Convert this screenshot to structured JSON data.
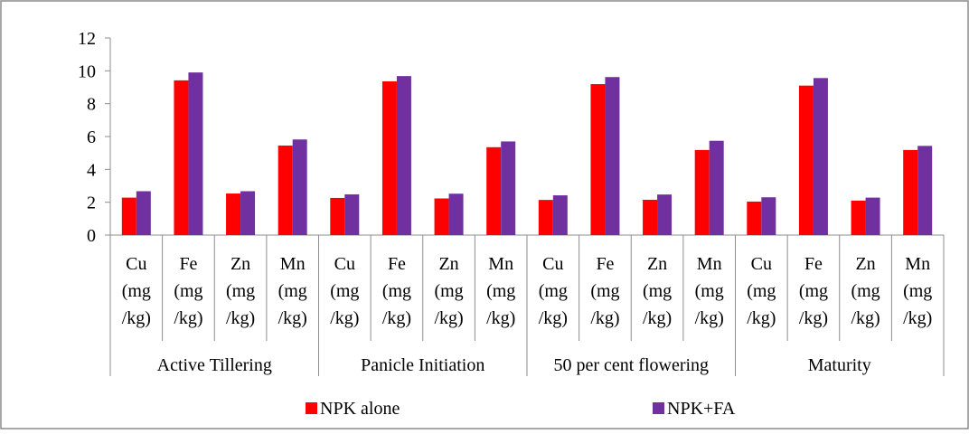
{
  "chart_data": {
    "type": "bar",
    "ylim": [
      0,
      12
    ],
    "yticks": [
      0,
      2,
      4,
      6,
      8,
      10,
      12
    ],
    "grid": false,
    "legend_position": "bottom",
    "categories": [
      "Cu (mg/kg)",
      "Fe (mg/kg)",
      "Zn (mg/kg)",
      "Mn (mg/kg)",
      "Cu (mg/kg)",
      "Fe (mg/kg)",
      "Zn (mg/kg)",
      "Mn (mg/kg)",
      "Cu (mg/kg)",
      "Fe (mg/kg)",
      "Zn (mg/kg)",
      "Mn (mg/kg)",
      "Cu (mg/kg)",
      "Fe (mg/kg)",
      "Zn (mg/kg)",
      "Mn (mg/kg)"
    ],
    "category_lines": [
      [
        "Cu",
        "(mg",
        "/kg)"
      ],
      [
        "Fe",
        "(mg",
        "/kg)"
      ],
      [
        "Zn",
        "(mg",
        "/kg)"
      ],
      [
        "Mn",
        "(mg",
        "/kg)"
      ],
      [
        "Cu",
        "(mg",
        "/kg)"
      ],
      [
        "Fe",
        "(mg",
        "/kg)"
      ],
      [
        "Zn",
        "(mg",
        "/kg)"
      ],
      [
        "Mn",
        "(mg",
        "/kg)"
      ],
      [
        "Cu",
        "(mg",
        "/kg)"
      ],
      [
        "Fe",
        "(mg",
        "/kg)"
      ],
      [
        "Zn",
        "(mg",
        "/kg)"
      ],
      [
        "Mn",
        "(mg",
        "/kg)"
      ],
      [
        "Cu",
        "(mg",
        "/kg)"
      ],
      [
        "Fe",
        "(mg",
        "/kg)"
      ],
      [
        "Zn",
        "(mg",
        "/kg)"
      ],
      [
        "Mn",
        "(mg",
        "/kg)"
      ]
    ],
    "groups": [
      "Active Tillering",
      "Panicle Initiation",
      "50 per cent flowering",
      "Maturity"
    ],
    "series": [
      {
        "name": "NPK alone",
        "color": "#ff0000",
        "values": [
          2.28,
          9.42,
          2.53,
          5.45,
          2.26,
          9.36,
          2.23,
          5.35,
          2.14,
          9.19,
          2.15,
          5.18,
          2.04,
          9.1,
          2.1,
          5.18
        ]
      },
      {
        "name": "NPK+FA",
        "color": "#7030a0",
        "values": [
          2.67,
          9.9,
          2.67,
          5.82,
          2.48,
          9.68,
          2.52,
          5.7,
          2.42,
          9.62,
          2.47,
          5.74,
          2.3,
          9.56,
          2.28,
          5.43
        ]
      }
    ]
  }
}
